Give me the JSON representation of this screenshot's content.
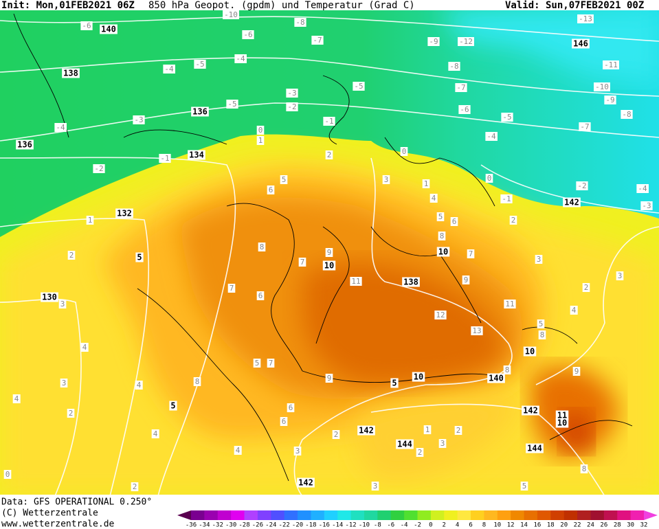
{
  "header": {
    "init": "Init: Mon,01FEB2021 06Z",
    "title": "850 hPa Geopot. (gpdm) und Temperatur (Grad C)",
    "valid": "Valid: Sun,07FEB2021 00Z"
  },
  "footer": {
    "source": "Data: GFS OPERATIONAL 0.250°",
    "copyright": "(C) Wetterzentrale",
    "url": "www.wetterzentrale.de"
  },
  "geopotential_labels": [
    140,
    138,
    136,
    136,
    134,
    132,
    130,
    146,
    142,
    138,
    140,
    142,
    144,
    144,
    142,
    142
  ],
  "temperature_labels": [
    -6,
    -10,
    -8,
    -6,
    -7,
    -9,
    -12,
    -13,
    -4,
    -5,
    -4,
    -8,
    -11,
    -7,
    -10,
    -9,
    -3,
    -2,
    -5,
    -5,
    -6,
    -5,
    -8,
    -7,
    -4,
    -3,
    -1,
    -4,
    0,
    1,
    -2,
    -1,
    2,
    0,
    -2,
    -4,
    -3,
    -1,
    0,
    2,
    1,
    5,
    6,
    3,
    1,
    4,
    5,
    6,
    2,
    5,
    8,
    8,
    9,
    10,
    10,
    7,
    7,
    3,
    11,
    9,
    2,
    3,
    7,
    6,
    11,
    12,
    13,
    4,
    5,
    8,
    10,
    3,
    4,
    5,
    7,
    9,
    5,
    10,
    8,
    9,
    3,
    4,
    8,
    5,
    4,
    2,
    6,
    6,
    2,
    1,
    2,
    3,
    2,
    4,
    4,
    3,
    2,
    0,
    3,
    8,
    5,
    11,
    10
  ],
  "colorbar": {
    "ticks": [
      -36,
      -34,
      -32,
      -30,
      -28,
      -26,
      -24,
      -22,
      -20,
      -18,
      -16,
      -14,
      -12,
      -10,
      -8,
      -6,
      -4,
      -2,
      0,
      2,
      4,
      6,
      8,
      10,
      12,
      14,
      16,
      18,
      20,
      22,
      24,
      26,
      28,
      30,
      32
    ],
    "colors": [
      "#5a0050",
      "#7a0090",
      "#9a00b0",
      "#c000d0",
      "#e000f0",
      "#b040ff",
      "#8040ff",
      "#5050ff",
      "#3070ff",
      "#2090ff",
      "#20b0ff",
      "#20d0ff",
      "#20e8e8",
      "#20e0c0",
      "#20d8a0",
      "#20d070",
      "#30d040",
      "#50e030",
      "#90ec20",
      "#d0f020",
      "#f0f020",
      "#ffe840",
      "#ffd020",
      "#ffb820",
      "#ffa010",
      "#f08800",
      "#e87000",
      "#e05800",
      "#d04000",
      "#c03000",
      "#b02020",
      "#a01030",
      "#c01050",
      "#e01080",
      "#f020b0",
      "#f040e0"
    ]
  }
}
